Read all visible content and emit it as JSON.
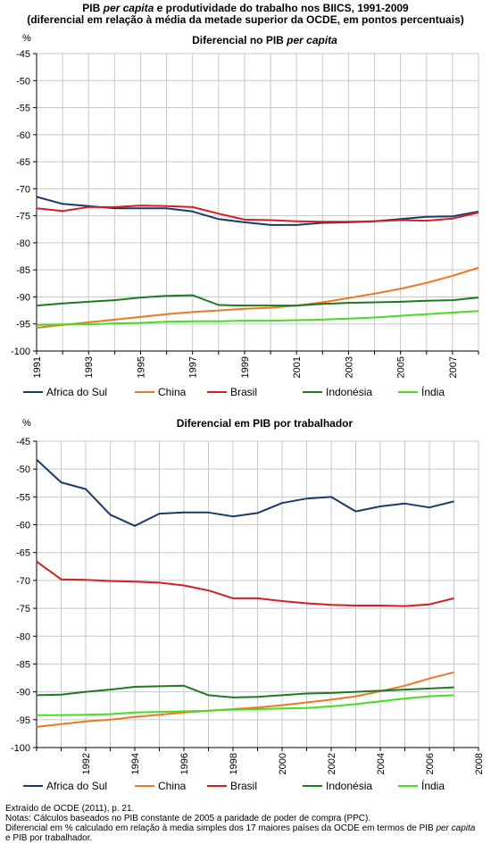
{
  "header": {
    "title_part1": "PIB ",
    "title_italic": "per capita",
    "title_part2": " e produtividade do trabalho nos BIICS, 1991-2009",
    "subtitle": "(diferencial em relação à média da metade superior da OCDE, em pontos percentuais)"
  },
  "chart_data": [
    {
      "type": "line",
      "title": "Diferencial no PIB ",
      "title_italic": "per capita",
      "ylabel": "%",
      "xlabel": "",
      "ylim": [
        -100,
        -45
      ],
      "xlim": [
        1991,
        2008
      ],
      "yticks": [
        -45,
        -50,
        -55,
        -60,
        -65,
        -70,
        -75,
        -80,
        -85,
        -90,
        -95,
        -100
      ],
      "xtick_labels": [
        "1991",
        "1993",
        "1995",
        "1997",
        "1999",
        "2001",
        "2003",
        "2005",
        "2007"
      ],
      "grid": true,
      "legend_position": "bottom",
      "x": [
        1991,
        1992,
        1993,
        1994,
        1995,
        1996,
        1997,
        1998,
        1999,
        2000,
        2001,
        2002,
        2003,
        2004,
        2005,
        2006,
        2007,
        2008
      ],
      "series": [
        {
          "name": "Africa do Sul",
          "color": "#1a3a6b",
          "values": [
            -71.5,
            -72.8,
            -73.2,
            -73.6,
            -73.6,
            -73.6,
            -74.2,
            -75.6,
            -76.2,
            -76.7,
            -76.7,
            -76.3,
            -76.2,
            -76.0,
            -75.6,
            -75.2,
            -75.1,
            -74.2
          ]
        },
        {
          "name": "China",
          "color": "#ee7722",
          "values": [
            -95.7,
            -95.2,
            -94.7,
            -94.2,
            -93.7,
            -93.2,
            -92.8,
            -92.5,
            -92.2,
            -92.0,
            -91.6,
            -91.0,
            -90.2,
            -89.4,
            -88.5,
            -87.4,
            -86.1,
            -84.6
          ]
        },
        {
          "name": "Brasil",
          "color": "#d42020",
          "values": [
            -73.6,
            -74.1,
            -73.4,
            -73.4,
            -73.1,
            -73.2,
            -73.4,
            -74.6,
            -75.7,
            -75.8,
            -76.0,
            -76.1,
            -76.1,
            -76.0,
            -75.8,
            -75.9,
            -75.5,
            -74.4
          ]
        },
        {
          "name": "Indonésia",
          "color": "#1e7a1e",
          "values": [
            -91.6,
            -91.2,
            -90.9,
            -90.6,
            -90.1,
            -89.8,
            -89.7,
            -91.5,
            -91.6,
            -91.6,
            -91.6,
            -91.3,
            -91.1,
            -91.0,
            -90.9,
            -90.7,
            -90.6,
            -90.1
          ]
        },
        {
          "name": "Índia",
          "color": "#44dd22",
          "values": [
            -95.2,
            -95.1,
            -95.1,
            -94.9,
            -94.8,
            -94.6,
            -94.5,
            -94.5,
            -94.4,
            -94.4,
            -94.3,
            -94.2,
            -94.0,
            -93.8,
            -93.5,
            -93.2,
            -92.9,
            -92.6
          ]
        }
      ]
    },
    {
      "type": "line",
      "title": "Diferencial em PIB por trabalhador",
      "title_italic": "",
      "ylabel": "%",
      "xlabel": "",
      "ylim": [
        -100,
        -45
      ],
      "xlim": [
        1990,
        2008
      ],
      "yticks": [
        -45,
        -50,
        -55,
        -60,
        -65,
        -70,
        -75,
        -80,
        -85,
        -90,
        -95,
        -100
      ],
      "xtick_labels": [
        "1992",
        "1994",
        "1996",
        "1998",
        "2000",
        "2002",
        "2004",
        "2006",
        "2008"
      ],
      "grid": true,
      "legend_position": "bottom",
      "x": [
        1990,
        1991,
        1992,
        1993,
        1994,
        1995,
        1996,
        1997,
        1998,
        1999,
        2000,
        2001,
        2002,
        2003,
        2004,
        2005,
        2006,
        2007
      ],
      "series": [
        {
          "name": "Africa do Sul",
          "color": "#1a3a6b",
          "values": [
            -48.3,
            -52.4,
            -53.6,
            -58.2,
            -60.2,
            -58.0,
            -57.8,
            -57.8,
            -58.5,
            -57.9,
            -56.1,
            -55.3,
            -55.0,
            -57.6,
            -56.7,
            -56.2,
            -56.9,
            -55.8
          ]
        },
        {
          "name": "China",
          "color": "#ee7722",
          "values": [
            -96.3,
            -95.8,
            -95.3,
            -95.0,
            -94.5,
            -94.1,
            -93.7,
            -93.4,
            -93.1,
            -92.8,
            -92.4,
            -91.9,
            -91.4,
            -90.8,
            -89.9,
            -88.9,
            -87.6,
            -86.5
          ]
        },
        {
          "name": "Brasil",
          "color": "#d42020",
          "values": [
            -66.6,
            -69.8,
            -69.9,
            -70.1,
            -70.2,
            -70.4,
            -70.9,
            -71.8,
            -73.2,
            -73.2,
            -73.7,
            -74.1,
            -74.4,
            -74.5,
            -74.5,
            -74.6,
            -74.3,
            -73.2
          ]
        },
        {
          "name": "Indonésia",
          "color": "#1e7a1e",
          "values": [
            -90.6,
            -90.5,
            -90.0,
            -89.6,
            -89.1,
            -89.0,
            -88.9,
            -90.6,
            -91.0,
            -90.9,
            -90.6,
            -90.3,
            -90.2,
            -90.0,
            -89.8,
            -89.6,
            -89.4,
            -89.2
          ]
        },
        {
          "name": "Índia",
          "color": "#44dd22",
          "values": [
            -94.2,
            -94.2,
            -94.1,
            -94.0,
            -93.7,
            -93.6,
            -93.5,
            -93.4,
            -93.2,
            -93.1,
            -93.0,
            -92.9,
            -92.6,
            -92.2,
            -91.7,
            -91.2,
            -90.8,
            -90.6
          ]
        }
      ]
    }
  ],
  "notes": {
    "source": "Extraído de OCDE (2011), p. 21.",
    "line1": "Notas: Cálculos baseados no PIB constante de 2005 a paridade de poder de compra (PPC).",
    "line2_part1": "Diferencial em % calculado em relação à media simples dos 17 maiores países da OCDE em termos de PIB ",
    "line2_italic": "per capita",
    "line3": "e PIB por trabalhador."
  }
}
